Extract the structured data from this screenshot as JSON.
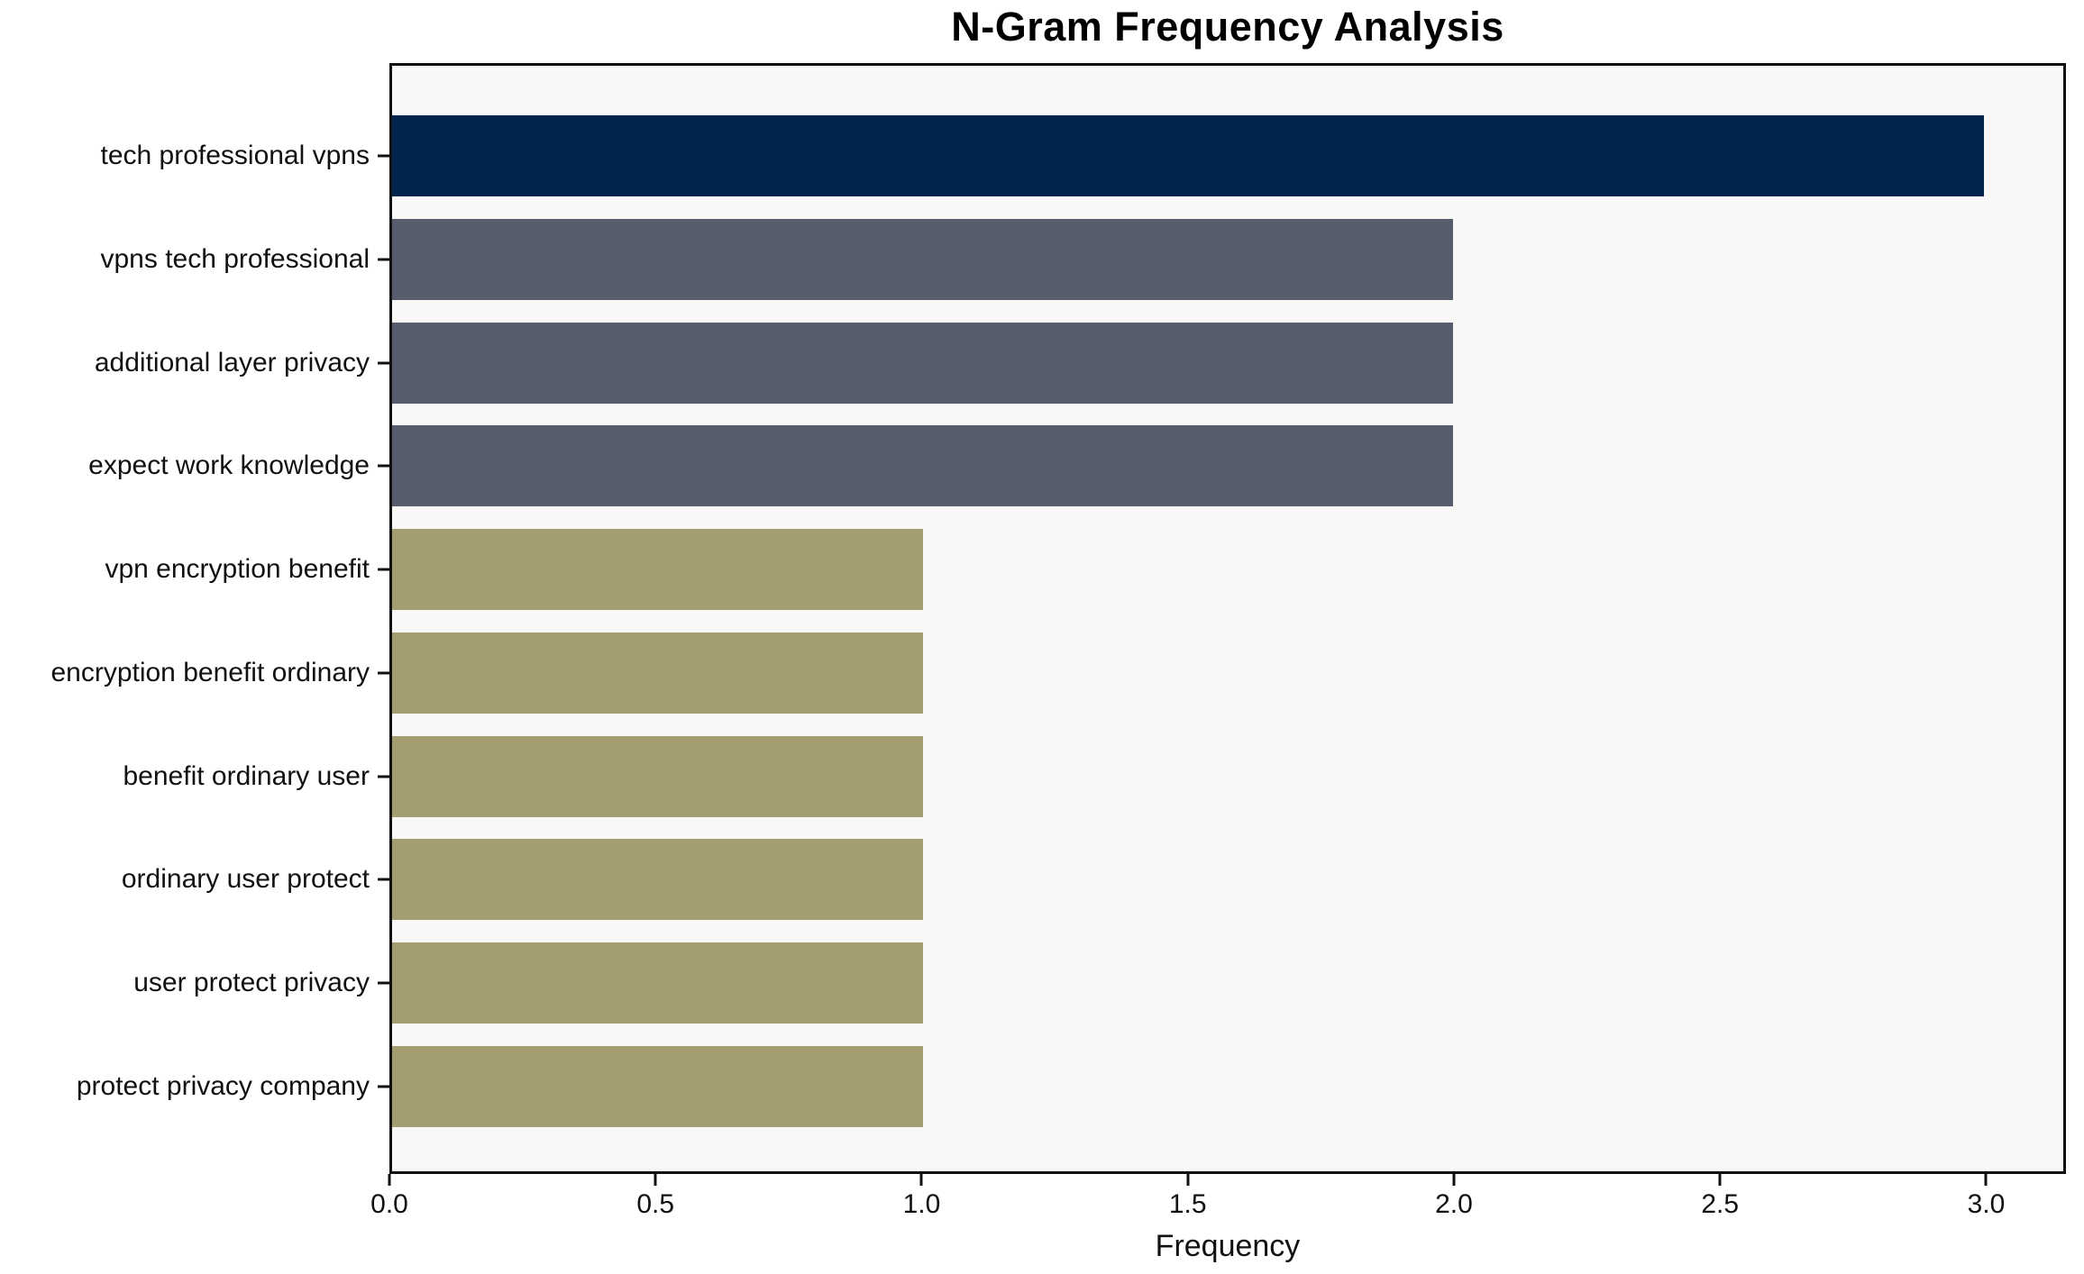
{
  "chart_data": {
    "type": "bar",
    "orientation": "horizontal",
    "title": "N-Gram Frequency Analysis",
    "xlabel": "Frequency",
    "ylabel": "",
    "grid": false,
    "legend": null,
    "plot_background": "#F8F8F7",
    "figure_background": "#FFFFFF",
    "spine_color": "#111111",
    "categories": [
      "tech professional vpns",
      "vpns tech professional",
      "additional layer privacy",
      "expect work knowledge",
      "vpn encryption benefit",
      "encryption benefit ordinary",
      "benefit ordinary user",
      "ordinary user protect",
      "user protect privacy",
      "protect privacy company"
    ],
    "values": [
      3,
      2,
      2,
      2,
      1,
      1,
      1,
      1,
      1,
      1
    ],
    "bar_colors": [
      "#01244D",
      "#575D6C",
      "#575D6C",
      "#575D6C",
      "#A59D72",
      "#A59D72",
      "#A59D72",
      "#A59D72",
      "#A59D72",
      "#A59D72"
    ],
    "xlim": [
      0,
      3.15
    ],
    "x_tick_values": [
      0,
      0.5,
      1,
      1.5,
      2,
      2.5,
      3
    ],
    "x_tick_labels": [
      "0.0",
      "0.5",
      "1.0",
      "1.5",
      "2.0",
      "2.5",
      "3.0"
    ]
  }
}
